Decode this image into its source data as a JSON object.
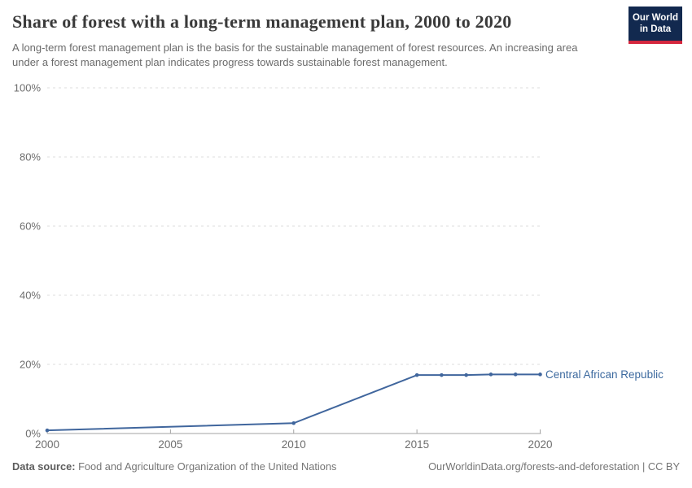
{
  "header": {
    "title": "Share of forest with a long-term management plan, 2000 to 2020",
    "subtitle": "A long-term forest management plan is the basis for the sustainable management of forest resources. An increasing area under a forest management plan indicates progress towards sustainable forest management."
  },
  "logo": {
    "line1": "Our World",
    "line2": "in Data",
    "bg_color": "#12294f",
    "bar_color": "#d4273e"
  },
  "chart_data": {
    "type": "line",
    "title": "Share of forest with a long-term management plan, 2000 to 2020",
    "series": [
      {
        "name": "Central African Republic",
        "color": "#40669d",
        "x": [
          2000,
          2010,
          2015,
          2016,
          2017,
          2018,
          2019,
          2020
        ],
        "values": [
          0.9,
          3.0,
          16.9,
          16.9,
          16.9,
          17.1,
          17.1,
          17.1
        ]
      }
    ],
    "xlabel": "",
    "ylabel": "",
    "xlim": [
      2000,
      2020
    ],
    "ylim": [
      0,
      100
    ],
    "x_ticks": [
      2000,
      2005,
      2010,
      2015,
      2020
    ],
    "x_tick_labels": [
      "2000",
      "2005",
      "2010",
      "2015",
      "2020"
    ],
    "y_ticks": [
      0,
      20,
      40,
      60,
      80,
      100
    ],
    "y_tick_labels": [
      "0%",
      "20%",
      "40%",
      "60%",
      "80%",
      "100%"
    ],
    "grid": "horizontal dashed, hidden at 0%",
    "legend_position": "label at right end of line"
  },
  "colors": {
    "line": "#40669d",
    "series_label": "#3d6a9f",
    "grid": "#dcdcdc",
    "axis": "#a3a3a3",
    "tick_text": "#6e6e6e"
  },
  "footer": {
    "source_label": "Data source:",
    "source_text": " Food and Agriculture Organization of the United Nations",
    "link_text": "OurWorldinData.org/forests-and-deforestation | CC BY"
  }
}
